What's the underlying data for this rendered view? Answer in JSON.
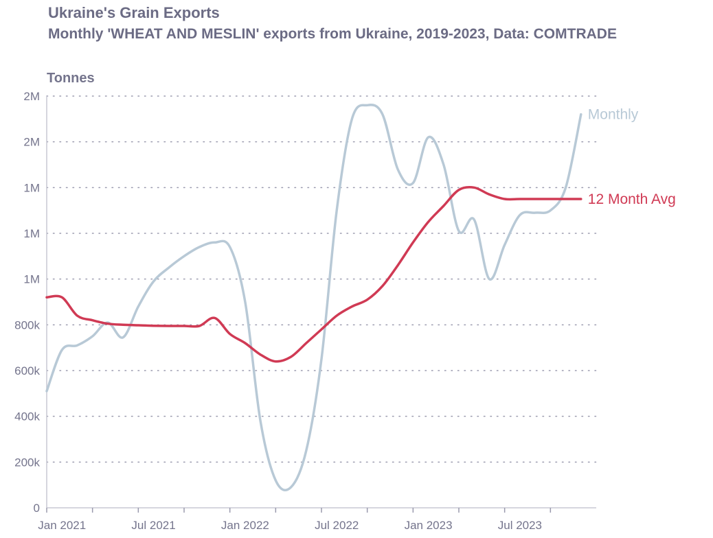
{
  "title": "Ukraine's Grain Exports",
  "subtitle": "Monthly 'WHEAT AND MESLIN' exports from Ukraine, 2019-2023, Data: COMTRADE",
  "chart_data": {
    "type": "line",
    "title": "Ukraine's Grain Exports",
    "subtitle": "Monthly 'WHEAT AND MESLIN' exports from Ukraine, 2019-2023, Data: COMTRADE",
    "ylabel": "Tonnes",
    "xlabel": "",
    "ylim": [
      0,
      1800000
    ],
    "y_ticks": [
      {
        "value": 0,
        "label": "0"
      },
      {
        "value": 200000,
        "label": "200k"
      },
      {
        "value": 400000,
        "label": "400k"
      },
      {
        "value": 600000,
        "label": "600k"
      },
      {
        "value": 800000,
        "label": "800k"
      },
      {
        "value": 1000000,
        "label": "1M"
      },
      {
        "value": 1200000,
        "label": "1M"
      },
      {
        "value": 1400000,
        "label": "1M"
      },
      {
        "value": 1600000,
        "label": "2M"
      },
      {
        "value": 1800000,
        "label": "2M"
      }
    ],
    "xlim": [
      "2020-12",
      "2023-12"
    ],
    "x_ticks": [
      "2020-12",
      "2021-03",
      "2021-06",
      "2021-09",
      "2021-12",
      "2022-03",
      "2022-06",
      "2022-09",
      "2022-12",
      "2023-03",
      "2023-06",
      "2023-09"
    ],
    "x_tick_labels": [
      {
        "x": "2021-01",
        "label": "Jan 2021"
      },
      {
        "x": "2021-07",
        "label": "Jul 2021"
      },
      {
        "x": "2022-01",
        "label": "Jan 2022"
      },
      {
        "x": "2022-07",
        "label": "Jul 2022"
      },
      {
        "x": "2023-01",
        "label": "Jan 2023"
      },
      {
        "x": "2023-07",
        "label": "Jul 2023"
      }
    ],
    "grid": "horizontal-dotted",
    "series": [
      {
        "name": "Monthly",
        "color": "#b8c9d6",
        "x": [
          "2020-12",
          "2021-01",
          "2021-02",
          "2021-03",
          "2021-04",
          "2021-05",
          "2021-06",
          "2021-07",
          "2021-08",
          "2021-09",
          "2021-10",
          "2021-11",
          "2021-12",
          "2022-01",
          "2022-02",
          "2022-03",
          "2022-04",
          "2022-05",
          "2022-06",
          "2022-07",
          "2022-08",
          "2022-09",
          "2022-10",
          "2022-11",
          "2022-12",
          "2023-01",
          "2023-02",
          "2023-03",
          "2023-04",
          "2023-05",
          "2023-06",
          "2023-07",
          "2023-08",
          "2023-09",
          "2023-10",
          "2023-11"
        ],
        "values": [
          510000,
          690000,
          710000,
          750000,
          810000,
          745000,
          880000,
          990000,
          1050000,
          1100000,
          1140000,
          1160000,
          1140000,
          900000,
          380000,
          120000,
          90000,
          250000,
          650000,
          1300000,
          1700000,
          1760000,
          1720000,
          1480000,
          1420000,
          1620000,
          1500000,
          1210000,
          1260000,
          1000000,
          1150000,
          1280000,
          1290000,
          1300000,
          1400000,
          1720000
        ]
      },
      {
        "name": "12 Month Avg",
        "color": "#d03a54",
        "x": [
          "2020-12",
          "2021-01",
          "2021-02",
          "2021-03",
          "2021-04",
          "2021-05",
          "2021-06",
          "2021-07",
          "2021-08",
          "2021-09",
          "2021-10",
          "2021-11",
          "2021-12",
          "2022-01",
          "2022-02",
          "2022-03",
          "2022-04",
          "2022-05",
          "2022-06",
          "2022-07",
          "2022-08",
          "2022-09",
          "2022-10",
          "2022-11",
          "2022-12",
          "2023-01",
          "2023-02",
          "2023-03",
          "2023-04",
          "2023-05",
          "2023-06",
          "2023-07",
          "2023-08",
          "2023-09",
          "2023-10",
          "2023-11"
        ],
        "values": [
          920000,
          920000,
          840000,
          820000,
          805000,
          800000,
          798000,
          796000,
          795000,
          795000,
          795000,
          830000,
          760000,
          720000,
          670000,
          640000,
          660000,
          720000,
          780000,
          840000,
          880000,
          910000,
          970000,
          1060000,
          1160000,
          1250000,
          1320000,
          1390000,
          1400000,
          1370000,
          1350000,
          1350000,
          1350000,
          1350000,
          1350000,
          1350000
        ]
      }
    ],
    "series_labels": [
      "Monthly",
      "12 Month Avg"
    ],
    "legend": "inline-right"
  }
}
